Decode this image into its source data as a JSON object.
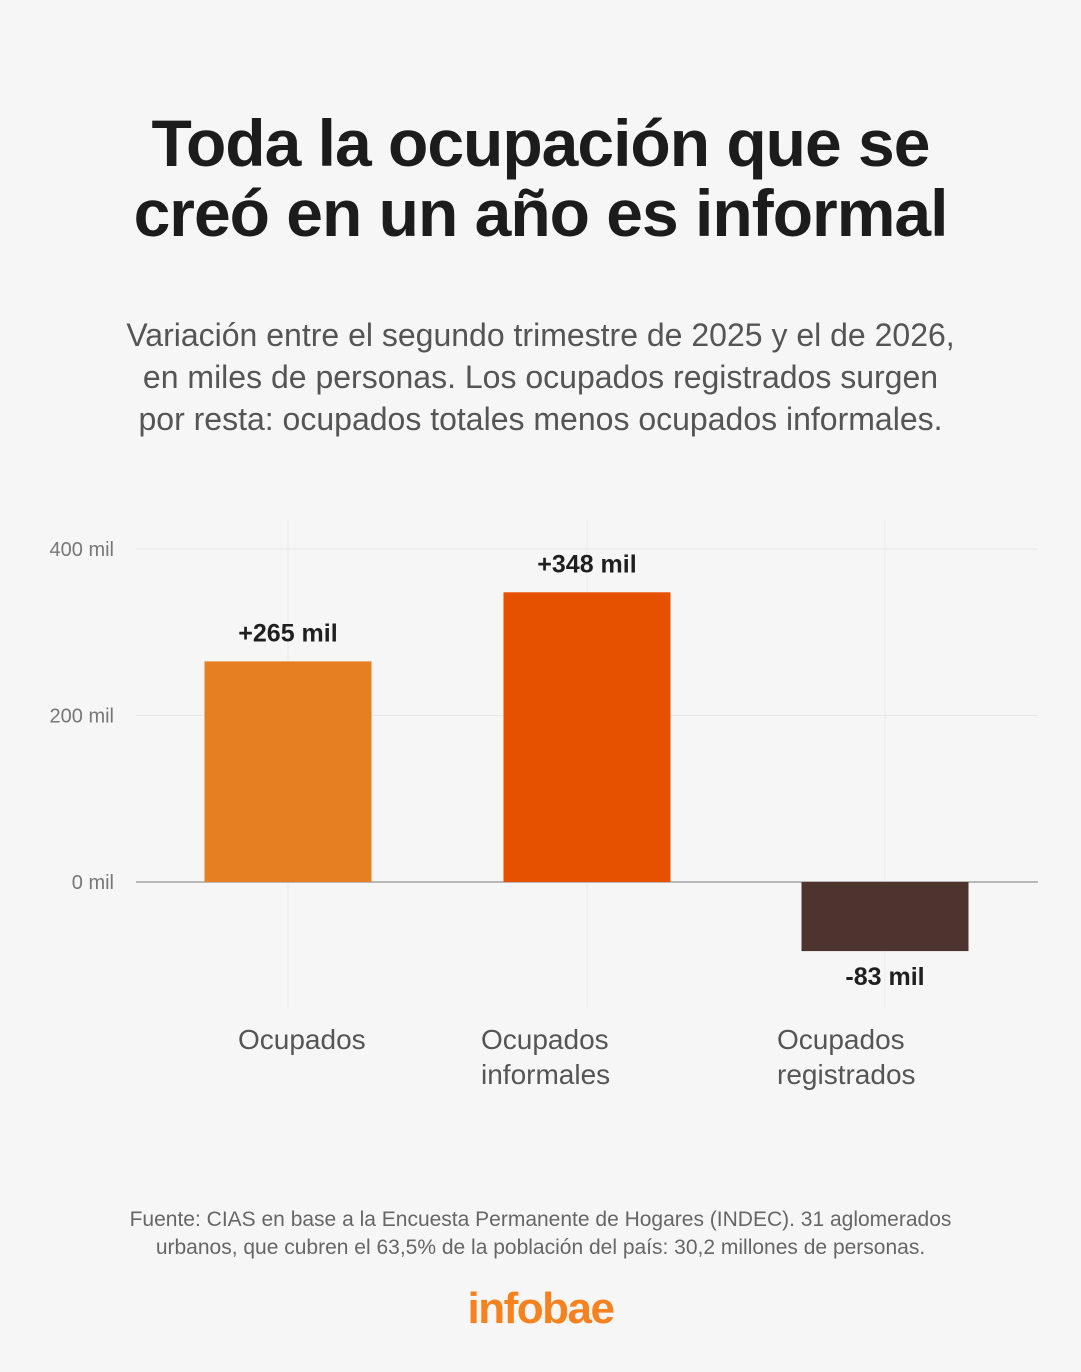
{
  "header": {
    "title_lines": [
      "Toda la ocupación que se",
      "creó en un año es informal"
    ],
    "subtitle_lines": [
      "Variación entre el segundo trimestre de 2025 y el de 2026,",
      "en miles de personas. Los ocupados registrados surgen",
      "por resta: ocupados totales menos ocupados informales."
    ]
  },
  "chart_data": {
    "type": "bar",
    "categories": [
      [
        "Ocupados"
      ],
      [
        "Ocupados",
        "informales"
      ],
      [
        "Ocupados",
        "registrados"
      ]
    ],
    "values": [
      265,
      348,
      -83
    ],
    "data_labels": [
      "+265 mil",
      "+348 mil",
      "-83 mil"
    ],
    "colors": [
      "#e67e22",
      "#e65100",
      "#4e342e"
    ],
    "y_ticks": [
      0,
      200,
      400
    ],
    "y_tick_labels": [
      "0 mil",
      "200 mil",
      "400 mil"
    ],
    "ylim": [
      -83,
      400
    ],
    "grid": true
  },
  "footer": {
    "source_lines": [
      "Fuente: CIAS en base a la Encuesta Permanente de Hogares (INDEC). 31 aglomerados",
      "urbanos, que cubren el 63,5% de la población del país: 30,2 millones de personas."
    ],
    "logo_text": "infobae",
    "logo_color": "#f5821f"
  }
}
